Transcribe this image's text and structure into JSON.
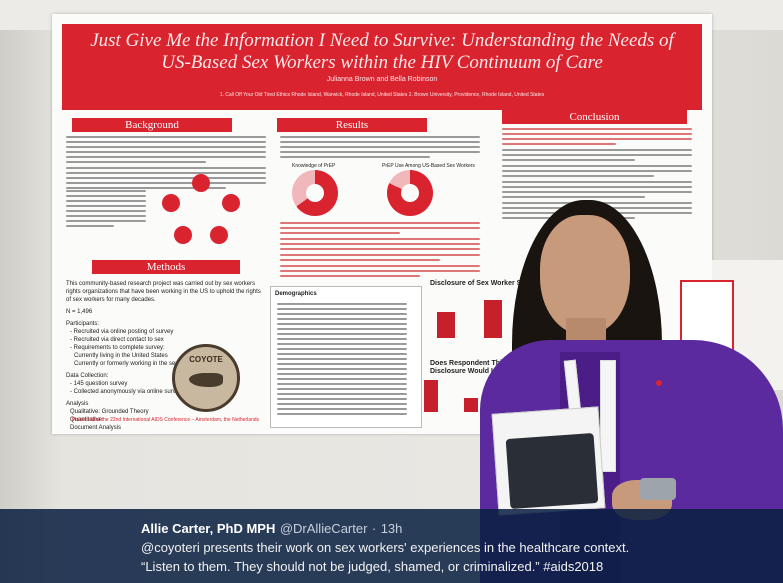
{
  "poster": {
    "title": "Just Give Me the Information I Need to Survive: Understanding the Needs of US-Based Sex Workers within the HIV Continuum of Care",
    "authors": "Julianna Brown and Bella Robinson",
    "affiliations": "1. Call Off Your Old Tired Ethics Rhode Island, Warwick, Rhode Island, United States  2. Brown University, Providence, Rhode Island, United States",
    "sections": {
      "background": "Background",
      "methods": "Methods",
      "results": "Results",
      "conclusion": "Conclusion"
    },
    "methods_intro": "This community-based research project was carried out by sex workers rights organizations that have been working in the US to uphold the rights of sex workers for many decades.",
    "n_value": "N = 1,496",
    "participants_head": "Participants:",
    "participants": [
      "- Recruited via online posting of survey",
      "- Recruited via direct contact to sex",
      "- Requirements to complete survey:",
      "Currently living in the United States",
      "Currently or formerly working in the sex industry"
    ],
    "data_collection_head": "Data Collection:",
    "data_collection": [
      "- 145 question survey",
      "- Collected anonymously via online survey"
    ],
    "analysis_head": "Analysis",
    "analysis": [
      "Qualitative: Grounded Theory",
      "Quantitative",
      "Document Analysis"
    ],
    "logo_text": "COYOTE",
    "donut1_label": "Knowledge of PrEP",
    "donut2_label": "PrEP Use Among US-Based Sex Workers",
    "demographics_label": "Demographics",
    "chart1_title": "Disclosure of Sex Worker Status",
    "chart2_title": "Does Respondent Think Disclosure Would Improve Care",
    "footer": "Presented at the 22nd International AIDS Conference – Amsterdam, the Netherlands",
    "accent_color": "#d9232f"
  },
  "caption": {
    "name": "Allie Carter, PhD MPH",
    "handle": "@DrAllieCarter",
    "separator": "·",
    "time": "13h",
    "line2": "@coyoteri presents their work on sex workers' experiences in the healthcare context.",
    "line3": "“Listen to them. They should not be judged, shamed, or criminalized.” #aids2018"
  }
}
